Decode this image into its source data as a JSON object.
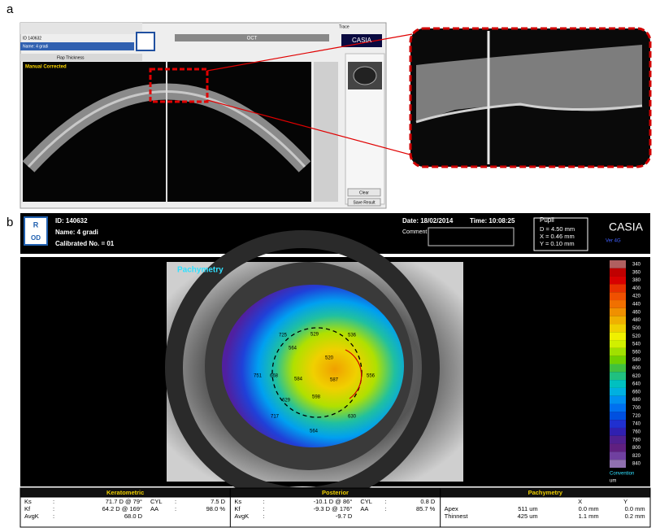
{
  "labels": {
    "a": "a",
    "b": "b"
  },
  "panel_a": {
    "id": "ID 140632",
    "name": "Name: 4 gradi",
    "window_title": "OCT",
    "trace": "Trace",
    "tab": "Flap Thickness",
    "status": "Manual Corrected",
    "logo": "CASIA",
    "buttons": [
      "Clear",
      "Save Result"
    ]
  },
  "panel_b": {
    "header": {
      "id": "ID: 140632",
      "name": "Name: 4 gradi",
      "calibrated": "Calibrated No. = 01",
      "eye": "R",
      "side": "OD",
      "date": "Date: 18/02/2014",
      "time": "Time: 10:08:25",
      "comment": "Comment",
      "pupil": {
        "title": "Pupil",
        "rows": [
          "D =  4.50 mm",
          "X =  0.46 mm",
          "Y =  0.10 mm"
        ]
      },
      "logo": "CASIA",
      "version": "Ver 4G"
    },
    "map": {
      "title": "Pachymetry",
      "points": [
        "725",
        "529",
        "536",
        "564",
        "520",
        "751",
        "668",
        "584",
        "587",
        "556",
        "629",
        "598",
        "630",
        "717",
        "564"
      ]
    },
    "color_scale": {
      "values": [
        340,
        360,
        380,
        400,
        420,
        440,
        460,
        480,
        500,
        520,
        540,
        560,
        580,
        600,
        620,
        640,
        660,
        680,
        700,
        720,
        740,
        760,
        780,
        800,
        820,
        840
      ],
      "colors": [
        "#b06060",
        "#c00000",
        "#d80000",
        "#e83000",
        "#f05000",
        "#f07000",
        "#f09000",
        "#f0b000",
        "#f0d000",
        "#f0f000",
        "#d0f000",
        "#a0e000",
        "#70d000",
        "#40c040",
        "#20c080",
        "#00c0c0",
        "#00b0e0",
        "#0090f0",
        "#0070f0",
        "#0050e0",
        "#2030d0",
        "#3020b0",
        "#502090",
        "#602080",
        "#7040a0",
        "#9070b0"
      ],
      "caption": "Convention",
      "unit": "um"
    },
    "tables": [
      {
        "title": "Keratometric",
        "rows": [
          [
            "Ks",
            ":",
            "71.7 D @ 79°",
            "CYL",
            ":",
            "7.5 D"
          ],
          [
            "Kf",
            ":",
            "64.2 D @ 169°",
            "AA",
            ":",
            "98.0 %"
          ],
          [
            "AvgK",
            ":",
            "68.0 D"
          ]
        ]
      },
      {
        "title": "Posterior",
        "rows": [
          [
            "Ks",
            ":",
            "-10.1 D @ 86°",
            "CYL",
            ":",
            "0.8 D"
          ],
          [
            "Kf",
            ":",
            "-9.3 D @ 176°",
            "AA",
            ":",
            "85.7 %"
          ],
          [
            "AvgK",
            ":",
            "-9.7 D"
          ]
        ]
      },
      {
        "title": "Pachymetry",
        "columns": [
          "X",
          "Y"
        ],
        "rows": [
          [
            "Apex",
            "511 um",
            "0.0 mm",
            "0.0 mm"
          ],
          [
            "Thinnest",
            "425 um",
            "1.1 mm",
            "0.2 mm"
          ]
        ]
      }
    ]
  }
}
